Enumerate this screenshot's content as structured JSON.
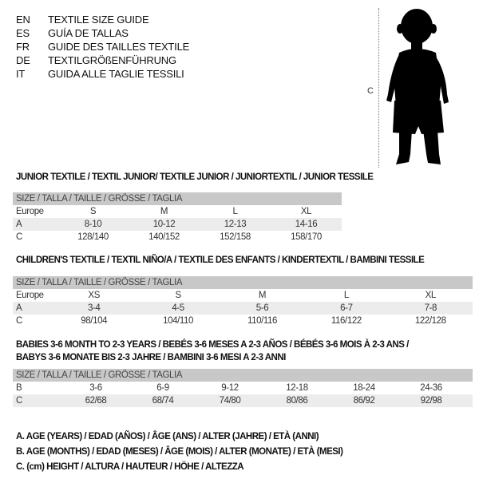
{
  "languages": [
    {
      "code": "EN",
      "text": "TEXTILE SIZE GUIDE"
    },
    {
      "code": "ES",
      "text": "GUÍA DE TALLAS"
    },
    {
      "code": "FR",
      "text": "GUIDE DES TAILLES TEXTILE"
    },
    {
      "code": "DE",
      "text": "TEXTILGRÖßENFÜHRUNG"
    },
    {
      "code": "IT",
      "text": "GUIDA ALLE TAGLIE TESSILI"
    }
  ],
  "figure": {
    "height_marker": "C",
    "icon": "baby-silhouette-icon"
  },
  "size_header": "SIZE / TALLA / TAILLE / GRÖSSE / TAGLIA",
  "junior": {
    "title": "JUNIOR TEXTILE / TEXTIL JUNIOR/ TEXTILE JUNIOR / JUNIORTEXTIL / JUNIOR TESSILE",
    "rows": [
      {
        "label": "Europe",
        "values": [
          "S",
          "M",
          "L",
          "XL"
        ]
      },
      {
        "label": "A",
        "values": [
          "8-10",
          "10-12",
          "12-13",
          "14-16"
        ]
      },
      {
        "label": "C",
        "values": [
          "128/140",
          "140/152",
          "152/158",
          "158/170"
        ]
      }
    ]
  },
  "children": {
    "title": "CHILDREN'S TEXTILE / TEXTIL NIÑO/A / TEXTILE DES ENFANTS / KINDERTEXTIL / BAMBINI TESSILE",
    "rows": [
      {
        "label": "Europe",
        "values": [
          "XS",
          "S",
          "M",
          "L",
          "XL"
        ]
      },
      {
        "label": "A",
        "values": [
          "3-4",
          "4-5",
          "5-6",
          "6-7",
          "7-8"
        ]
      },
      {
        "label": "C",
        "values": [
          "98/104",
          "104/110",
          "110/116",
          "116/122",
          "122/128"
        ]
      }
    ]
  },
  "babies": {
    "title_line1": "BABIES 3-6 MONTH TO 2-3 YEARS / BEBÉS 3-6 MESES A 2-3 AÑOS / BÉBÉS 3-6 MOIS À 2-3 ANS /",
    "title_line2": "BABYS 3-6 MONATE BIS 2-3 JAHRE / BAMBINI 3-6 MESI A 2-3 ANNI",
    "rows": [
      {
        "label": "B",
        "values": [
          "3-6",
          "6-9",
          "9-12",
          "12-18",
          "18-24",
          "24-36"
        ]
      },
      {
        "label": "C",
        "values": [
          "62/68",
          "68/74",
          "74/80",
          "80/86",
          "86/92",
          "92/98"
        ]
      }
    ]
  },
  "legend": [
    "A. AGE (YEARS) / EDAD (AÑOS) / ÂGE (ANS) / ALTER (JAHRE) / ETÀ (ANNI)",
    "B. AGE (MONTHS) / EDAD (MESES) / ÂGE (MOIS) / ALTER (MONATE) / ETÀ (MESI)",
    "C. (cm) HEIGHT / ALTURA / HAUTEUR / HÖHE / ALTEZZA"
  ]
}
